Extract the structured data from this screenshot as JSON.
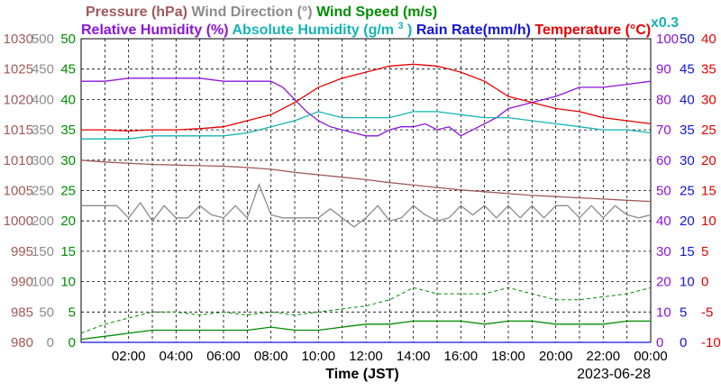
{
  "chart_data": {
    "type": "line",
    "date": "2023-06-28",
    "x_axis": {
      "label": "Time (JST)",
      "tick_labels": [
        "02:00",
        "04:00",
        "06:00",
        "08:00",
        "10:00",
        "12:00",
        "14:00",
        "16:00",
        "18:00",
        "20:00",
        "22:00",
        "00:00"
      ],
      "tick_hours": [
        2,
        4,
        6,
        8,
        10,
        12,
        14,
        16,
        18,
        20,
        22,
        24
      ],
      "range_hours": [
        0,
        24
      ]
    },
    "legend": {
      "row1": [
        {
          "text": "Pressure (hPa)",
          "color": "#a05a5a"
        },
        {
          "text": " Wind Direction (°)",
          "color": "#8c8c8c"
        },
        {
          "text": " Wind Speed (m/s)",
          "color": "#008c00"
        }
      ],
      "row2": [
        {
          "text": "Relative Humidity (%)",
          "color": "#8c14dc"
        },
        {
          "text": " Absolute Humidity (g/m",
          "color": "#14b4b4",
          "sup": "3",
          "after": ")"
        },
        {
          "text": " Rain Rate(mm/h)",
          "color": "#1414dc"
        },
        {
          "text": " Temperature (°C)",
          "color": "#e60000"
        }
      ],
      "extra": {
        "text": "x0.3",
        "color": "#14b4b4"
      }
    },
    "axes": {
      "pressure": {
        "color": "#a05a5a",
        "ticks": [
          "980",
          "985",
          "990",
          "995",
          "1000",
          "1005",
          "1010",
          "1015",
          "1020",
          "1025",
          "1030"
        ],
        "range": [
          980,
          1030
        ]
      },
      "wind_direction": {
        "color": "#8c8c8c",
        "ticks": [
          "0",
          "50",
          "100",
          "150",
          "200",
          "250",
          "300",
          "350",
          "400",
          "450",
          "500"
        ],
        "range": [
          0,
          500
        ]
      },
      "wind_speed": {
        "color": "#008c00",
        "ticks": [
          "0",
          "5",
          "10",
          "15",
          "20",
          "25",
          "30",
          "35",
          "40",
          "45",
          "50"
        ],
        "range": [
          0,
          50
        ]
      },
      "relative_humidity": {
        "color": "#8c14dc",
        "ticks": [
          "0",
          "10",
          "20",
          "30",
          "40",
          "50",
          "60",
          "70",
          "80",
          "90",
          "100"
        ],
        "range": [
          0,
          100
        ]
      },
      "rain_rate": {
        "color": "#1414dc",
        "ticks": [
          "0",
          "5",
          "10",
          "15",
          "20",
          "25",
          "30",
          "35",
          "40",
          "45",
          "50"
        ],
        "range": [
          0,
          50
        ]
      },
      "temperature": {
        "color": "#e60000",
        "ticks": [
          "-10",
          "-5",
          "0",
          "5",
          "10",
          "15",
          "20",
          "25",
          "30",
          "35",
          "40"
        ],
        "range": [
          -10,
          40
        ]
      }
    },
    "grid": true,
    "series": [
      {
        "name": "Pressure (hPa)",
        "axis": "pressure",
        "color": "#a05a5a",
        "x": [
          0,
          1,
          2,
          3,
          4,
          5,
          6,
          7,
          8,
          9,
          10,
          11,
          12,
          13,
          14,
          15,
          16,
          17,
          18,
          19,
          20,
          21,
          22,
          23,
          24
        ],
        "y": [
          1010.0,
          1009.7,
          1009.5,
          1009.3,
          1009.2,
          1009.1,
          1009.0,
          1008.8,
          1008.5,
          1008.0,
          1007.6,
          1007.2,
          1006.8,
          1006.3,
          1005.9,
          1005.5,
          1005.1,
          1004.8,
          1004.5,
          1004.2,
          1004.0,
          1003.8,
          1003.6,
          1003.4,
          1003.2
        ]
      },
      {
        "name": "Wind Direction (°)",
        "axis": "wind_direction",
        "color": "#8c8c8c",
        "x": [
          0,
          0.5,
          1,
          1.5,
          2,
          2.5,
          3,
          3.5,
          4,
          4.5,
          5,
          5.5,
          6,
          6.5,
          7,
          7.5,
          8,
          8.5,
          9,
          9.5,
          10,
          10.5,
          11,
          11.5,
          12,
          12.5,
          13,
          13.5,
          14,
          14.5,
          15,
          15.5,
          16,
          16.5,
          17,
          17.5,
          18,
          18.5,
          19,
          19.5,
          20,
          20.5,
          21,
          21.5,
          22,
          22.5,
          23,
          23.5,
          24
        ],
        "y": [
          225,
          225,
          225,
          225,
          205,
          230,
          200,
          225,
          205,
          205,
          225,
          210,
          205,
          225,
          205,
          260,
          210,
          205,
          205,
          205,
          205,
          220,
          205,
          190,
          205,
          225,
          200,
          205,
          225,
          210,
          200,
          205,
          225,
          210,
          225,
          205,
          225,
          205,
          225,
          205,
          225,
          225,
          205,
          225,
          205,
          225,
          210,
          205,
          210
        ]
      },
      {
        "name": "Wind Speed (m/s)",
        "axis": "wind_speed",
        "color": "#008c00",
        "x": [
          0,
          1,
          2,
          3,
          4,
          5,
          6,
          7,
          8,
          9,
          10,
          11,
          12,
          13,
          14,
          15,
          16,
          17,
          18,
          19,
          20,
          21,
          22,
          23,
          24
        ],
        "y": [
          0.5,
          1.0,
          1.5,
          2.0,
          2.0,
          2.0,
          2.0,
          2.0,
          2.5,
          2.0,
          2.0,
          2.5,
          3.0,
          3.0,
          3.5,
          3.5,
          3.5,
          3.0,
          3.5,
          3.5,
          3.0,
          3.0,
          3.0,
          3.5,
          3.5
        ]
      },
      {
        "name": "Wind Speed gust",
        "axis": "wind_speed",
        "color": "#008c00",
        "dash": true,
        "x": [
          0,
          1,
          2,
          3,
          4,
          5,
          6,
          7,
          8,
          9,
          10,
          11,
          12,
          13,
          14,
          15,
          16,
          17,
          18,
          19,
          20,
          21,
          22,
          23,
          24
        ],
        "y": [
          1.5,
          3.0,
          4.0,
          5.0,
          5.0,
          4.5,
          5.0,
          4.5,
          5.0,
          4.5,
          5.0,
          5.5,
          6.0,
          7.0,
          9.0,
          8.0,
          8.0,
          8.0,
          9.0,
          8.0,
          7.0,
          7.0,
          7.5,
          8.0,
          9.0
        ]
      },
      {
        "name": "Relative Humidity (%)",
        "axis": "relative_humidity",
        "color": "#8c14dc",
        "x": [
          0,
          1,
          2,
          3,
          4,
          5,
          6,
          7,
          8,
          8.5,
          9,
          9.5,
          10,
          10.5,
          11,
          11.5,
          12,
          12.5,
          13,
          13.5,
          14,
          14.5,
          15,
          15.5,
          16,
          16.5,
          17,
          17.5,
          18,
          19,
          20,
          21,
          22,
          23,
          24
        ],
        "y": [
          86,
          86,
          87,
          87,
          87,
          87,
          86,
          86,
          86,
          84,
          80,
          76,
          73,
          71,
          70,
          69,
          68,
          68,
          70,
          71,
          71,
          72,
          70,
          71,
          68,
          70,
          72,
          74,
          77,
          79,
          81,
          84,
          84,
          85,
          86
        ]
      },
      {
        "name": "Absolute Humidity (g/m3) x0.3",
        "axis": "relative_humidity",
        "color": "#14b4b4",
        "x": [
          0,
          1,
          2,
          3,
          4,
          5,
          6,
          7,
          8,
          9,
          10,
          11,
          12,
          13,
          14,
          15,
          16,
          17,
          18,
          19,
          20,
          21,
          22,
          23,
          24
        ],
        "y": [
          67,
          67,
          67,
          68,
          68,
          68,
          68,
          69,
          71,
          73,
          76,
          74,
          74,
          74,
          76,
          76,
          75,
          74,
          74,
          73,
          72,
          71,
          70,
          70,
          69
        ]
      },
      {
        "name": "Rain Rate(mm/h)",
        "axis": "rain_rate",
        "color": "#1414dc",
        "x": [
          0,
          24
        ],
        "y": [
          0,
          0
        ]
      },
      {
        "name": "Temperature (°C)",
        "axis": "temperature",
        "color": "#e60000",
        "x": [
          0,
          1,
          2,
          3,
          4,
          5,
          6,
          7,
          8,
          9,
          10,
          11,
          12,
          13,
          14,
          15,
          16,
          17,
          18,
          19,
          20,
          21,
          22,
          23,
          24
        ],
        "y": [
          25,
          25,
          24.8,
          25,
          25,
          25.2,
          25.5,
          26.5,
          27.5,
          29.5,
          32,
          33.5,
          34.5,
          35.5,
          35.8,
          35.5,
          34.5,
          33,
          30.5,
          29.5,
          28.5,
          28,
          27,
          26.5,
          26
        ]
      }
    ]
  }
}
